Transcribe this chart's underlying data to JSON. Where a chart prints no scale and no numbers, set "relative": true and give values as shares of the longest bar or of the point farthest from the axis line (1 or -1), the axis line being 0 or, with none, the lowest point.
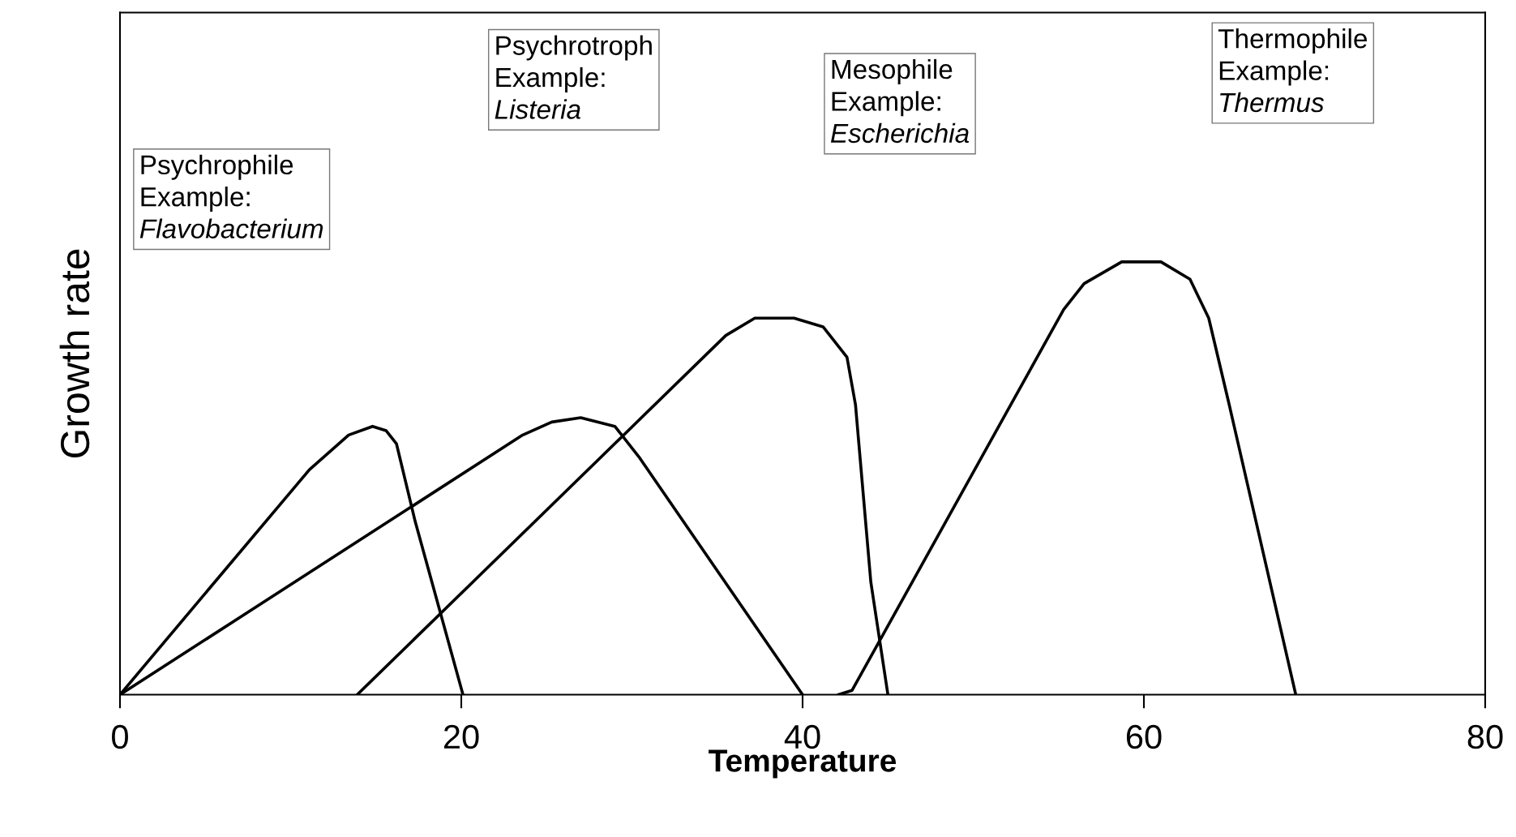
{
  "chart_data": {
    "type": "line",
    "relative": true,
    "xlabel": "Temperature",
    "ylabel": "Growth rate",
    "xlim": [
      0,
      80
    ],
    "xticks": [
      0,
      20,
      40,
      60,
      80
    ],
    "grid": false,
    "legend": false,
    "marker": "none",
    "line_style": "solid",
    "series": [
      {
        "color": "#000000",
        "x": [
          0,
          11.1,
          13.4,
          14.8,
          15.6,
          16.2,
          17.3,
          20.1
        ],
        "values": [
          0,
          0.52,
          0.6,
          0.62,
          0.61,
          0.58,
          0.4,
          0
        ]
      },
      {
        "color": "#000000",
        "x": [
          0,
          23.6,
          25.3,
          27,
          29,
          30.4,
          40
        ],
        "values": [
          0,
          0.6,
          0.63,
          0.64,
          0.62,
          0.55,
          0
        ]
      },
      {
        "color": "#000000",
        "x": [
          13.9,
          35.5,
          37.2,
          39.5,
          41.2,
          42.6,
          43.1,
          44,
          45
        ],
        "values": [
          0,
          0.83,
          0.87,
          0.87,
          0.85,
          0.78,
          0.67,
          0.26,
          0
        ]
      },
      {
        "color": "#000000",
        "x": [
          42.1,
          42.9,
          55.3,
          56.5,
          58.7,
          61,
          62.7,
          63.8,
          65,
          68.9
        ],
        "values": [
          0,
          0.01,
          0.89,
          0.95,
          1.0,
          1.0,
          0.96,
          0.87,
          0.67,
          0
        ]
      }
    ],
    "annotations": [
      "Psychrophile\nExample:\nFlavobacterium",
      "Psychrotroph\nExample:\nListeria",
      "Mesophile\nExample:\nEscherichia",
      "Thermophile\nExample:\nThermus"
    ]
  }
}
